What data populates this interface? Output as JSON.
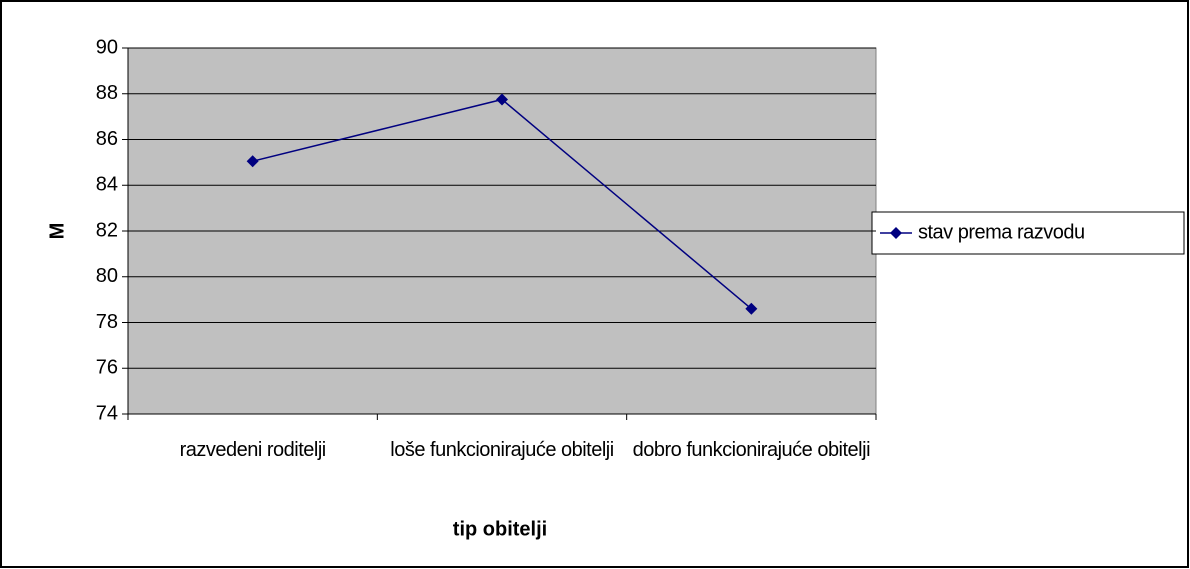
{
  "chart_data": {
    "type": "line",
    "categories": [
      "razvedeni roditelji",
      "loše funkcionirajuće obitelji",
      "dobro funkcionirajuće obitelji"
    ],
    "series": [
      {
        "name": "stav prema razvodu",
        "color": "#000080",
        "values": [
          85.05,
          87.75,
          78.6
        ]
      }
    ],
    "xlabel": "tip obitelji",
    "ylabel": "M",
    "ylim": [
      74,
      90
    ],
    "yticks": [
      74,
      76,
      78,
      80,
      82,
      84,
      86,
      88,
      90
    ],
    "grid": true,
    "legend": "right"
  }
}
